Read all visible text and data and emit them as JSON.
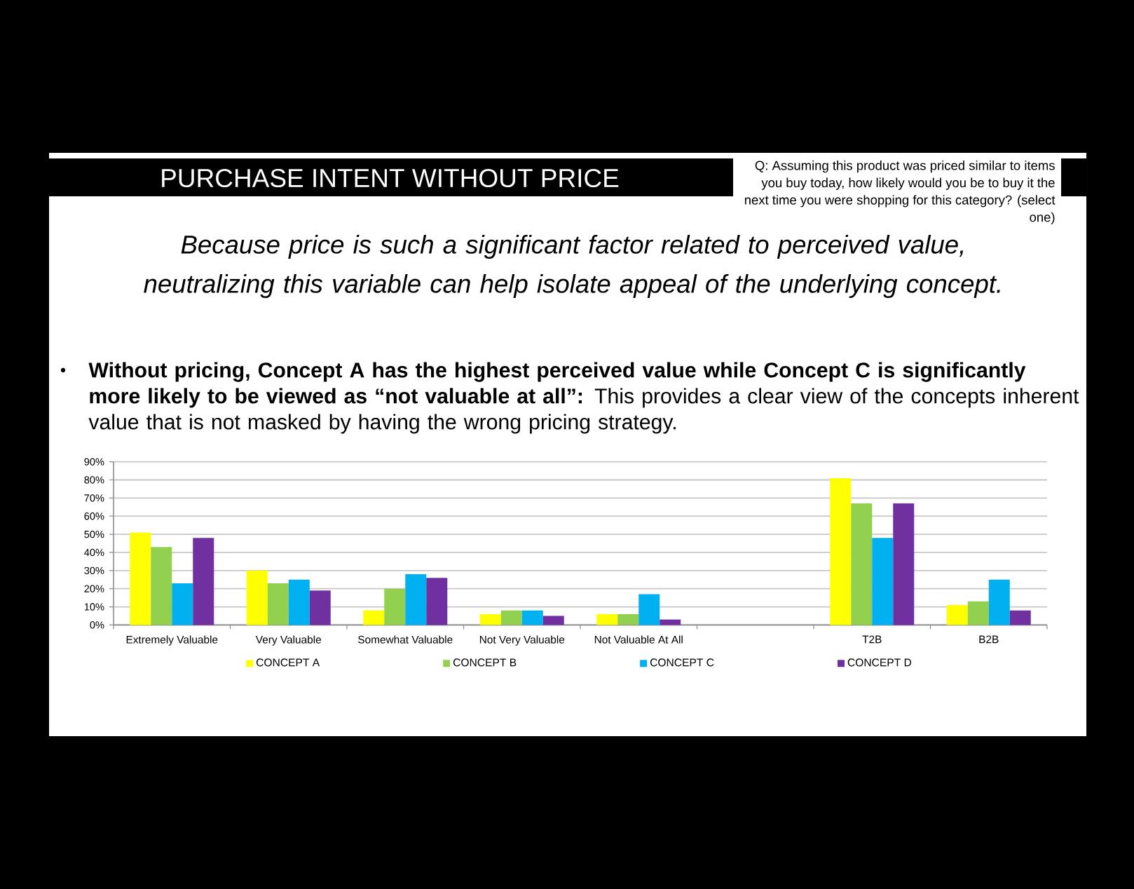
{
  "chart_data": {
    "type": "bar",
    "title": "PURCHASE INTENT WITHOUT PRICE",
    "subtitle": "Because price is such a significant factor related to perceived value, neutralizing this variable can help isolate appeal of the underlying concept.",
    "annotations": [
      "Q: Assuming this product was priced similar to items you buy today, how likely would you be to buy it the next time you were shopping for this category? (select one)",
      "**Without pricing, Concept A has the highest perceived value while Concept C is significantly more likely to be viewed as “not valuable at all”:** This provides a clear view of the concepts inherent value that is not masked by having the wrong pricing strategy."
    ],
    "categories": [
      "Extremely Valuable",
      "Very Valuable",
      "Somewhat Valuable",
      "Not Very Valuable",
      "Not Valuable At All",
      null,
      "T2B",
      "B2B"
    ],
    "series": [
      {
        "name": "CONCEPT A",
        "color": "#ffff00",
        "values": [
          51,
          30,
          8,
          6,
          6,
          null,
          81,
          11
        ]
      },
      {
        "name": "CONCEPT B",
        "color": "#92d050",
        "values": [
          43,
          23,
          20,
          8,
          6,
          null,
          67,
          13
        ]
      },
      {
        "name": "CONCEPT C",
        "color": "#00b0f0",
        "values": [
          23,
          25,
          28,
          8,
          17,
          null,
          48,
          25
        ]
      },
      {
        "name": "CONCEPT D",
        "color": "#7030a0",
        "values": [
          48,
          19,
          26,
          5,
          3,
          null,
          67,
          8
        ]
      }
    ],
    "ylim": [
      0,
      90
    ],
    "yticks": [
      {
        "value": 0,
        "label": "0%"
      },
      {
        "value": 10,
        "label": "10%"
      },
      {
        "value": 20,
        "label": "20%"
      },
      {
        "value": 30,
        "label": "30%"
      },
      {
        "value": 40,
        "label": "40%"
      },
      {
        "value": 50,
        "label": "50%"
      },
      {
        "value": 60,
        "label": "60%"
      },
      {
        "value": 70,
        "label": "70%"
      },
      {
        "value": 80,
        "label": "80%"
      },
      {
        "value": 90,
        "label": "90%"
      }
    ],
    "grid": "y",
    "legend": "bottom"
  }
}
